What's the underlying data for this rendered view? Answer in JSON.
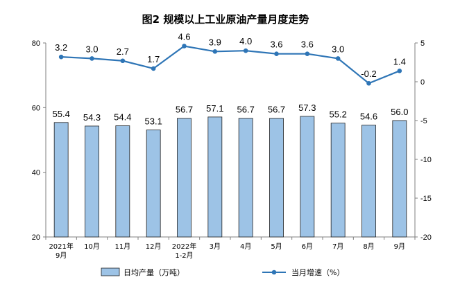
{
  "chart_data": {
    "type": "bar+line",
    "title": "图2  规模以上工业原油产量月度走势",
    "categories": [
      [
        "2021年",
        "9月"
      ],
      [
        "10月"
      ],
      [
        "11月"
      ],
      [
        "12月"
      ],
      [
        "2022年",
        "1-2月"
      ],
      [
        "3月"
      ],
      [
        "4月"
      ],
      [
        "5月"
      ],
      [
        "6月"
      ],
      [
        "7月"
      ],
      [
        "8月"
      ],
      [
        "9月"
      ]
    ],
    "series": [
      {
        "name": "日均产量（万吨）",
        "kind": "bar",
        "axis": "left",
        "color": "#9DC3E6",
        "stroke": "#1F1F1F",
        "values": [
          55.4,
          54.3,
          54.4,
          53.1,
          56.7,
          57.1,
          56.7,
          56.7,
          57.3,
          55.2,
          54.6,
          56.0
        ]
      },
      {
        "name": "当月增速（%）",
        "kind": "line",
        "axis": "right",
        "color": "#2E75B6",
        "values": [
          3.2,
          3.0,
          2.7,
          1.7,
          4.6,
          3.9,
          4.0,
          3.6,
          3.6,
          3.0,
          -0.2,
          1.4
        ]
      }
    ],
    "y_left": {
      "min": 20,
      "max": 80,
      "ticks": [
        20,
        40,
        60,
        80
      ]
    },
    "y_right": {
      "min": -20,
      "max": 5,
      "ticks": [
        -20,
        -15,
        -10,
        -5,
        0,
        5
      ]
    },
    "grid": false,
    "legend": "bottom"
  }
}
